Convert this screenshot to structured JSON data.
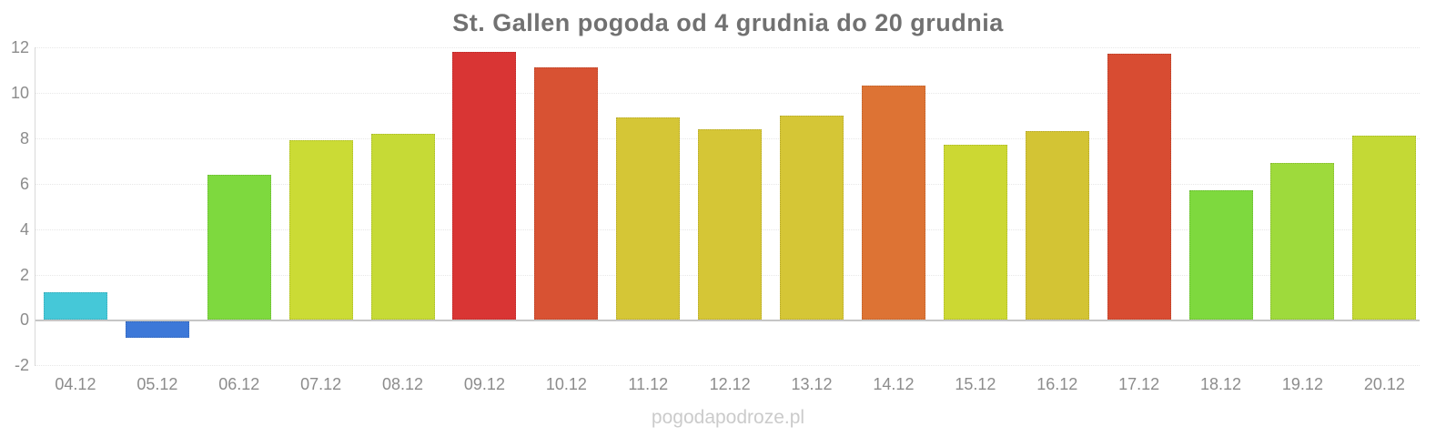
{
  "title": "St. Gallen pogoda od 4 grudnia do 20 grudnia",
  "watermark": "pogodapodroze.pl",
  "colors": {
    "title_text": "#717171",
    "axis_label_text": "#8c8c8c",
    "gridline": "#e7e7e7",
    "zero_line": "#c6c6c6",
    "background": "#ffffff",
    "watermark_text": "#cbcbcb"
  },
  "chart_data": {
    "type": "bar",
    "title": "St. Gallen pogoda od 4 grudnia do 20 grudnia",
    "categories": [
      "04.12",
      "05.12",
      "06.12",
      "07.12",
      "08.12",
      "09.12",
      "10.12",
      "11.12",
      "12.12",
      "13.12",
      "14.12",
      "15.12",
      "16.12",
      "17.12",
      "18.12",
      "19.12",
      "20.12"
    ],
    "values": [
      1.2,
      -0.7,
      6.4,
      7.9,
      8.2,
      11.8,
      11.1,
      8.9,
      8.4,
      9.0,
      10.3,
      7.7,
      8.3,
      11.7,
      5.7,
      6.9,
      8.1
    ],
    "bar_colors": [
      "#45c8d8",
      "#3d78d8",
      "#7ed93e",
      "#cbdb35",
      "#c6da36",
      "#d93534",
      "#d85233",
      "#d5c636",
      "#d5c636",
      "#d5c636",
      "#dd7334",
      "#ccd833",
      "#d3c434",
      "#d84c32",
      "#7ed93e",
      "#9eda3c",
      "#c4d935"
    ],
    "xlabel": "",
    "ylabel": "",
    "ylim": [
      -2,
      12
    ],
    "yticks": [
      12,
      10,
      8,
      6,
      4,
      2,
      0,
      -2
    ],
    "grid": true,
    "legend": false
  }
}
